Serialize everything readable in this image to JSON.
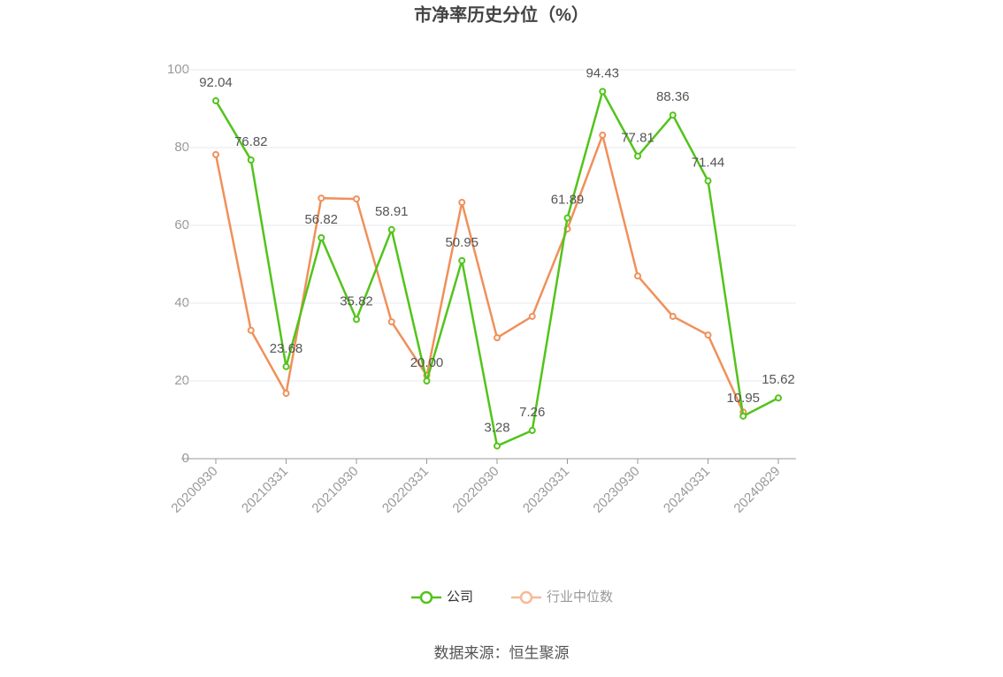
{
  "chart_data": {
    "type": "line",
    "title": "市净率历史分位（%）",
    "categories": [
      "20200930",
      null,
      "20210331",
      null,
      "20210930",
      null,
      "20220331",
      null,
      "20220930",
      null,
      "20230331",
      null,
      "20230930",
      null,
      "20240331",
      null,
      "20240829"
    ],
    "series": [
      {
        "name": "公司",
        "color": "#52c41a",
        "values": [
          92.04,
          76.82,
          23.68,
          56.82,
          35.82,
          58.91,
          20.0,
          50.95,
          3.28,
          7.26,
          61.89,
          94.43,
          77.81,
          88.36,
          71.44,
          10.95,
          15.62
        ],
        "value_labels": [
          "92.04",
          "76.82",
          "23.68",
          "56.82",
          "35.82",
          "58.91",
          "20.00",
          "50.95",
          "3.28",
          "7.26",
          "61.89",
          "94.43",
          "77.81",
          "88.36",
          "71.44",
          "10.95",
          "15.62"
        ]
      },
      {
        "name": "行业中位数",
        "color": "#f0905a",
        "values": [
          78.2,
          33.0,
          16.8,
          67.0,
          66.8,
          35.2,
          21.4,
          65.9,
          31.1,
          36.6,
          59.1,
          83.2,
          47.0,
          36.6,
          31.8,
          12.0,
          null
        ]
      }
    ],
    "ylim": [
      0,
      100
    ],
    "yticks": [
      0,
      20,
      40,
      60,
      80,
      100
    ],
    "grid": true,
    "source": "数据来源：恒生聚源"
  }
}
